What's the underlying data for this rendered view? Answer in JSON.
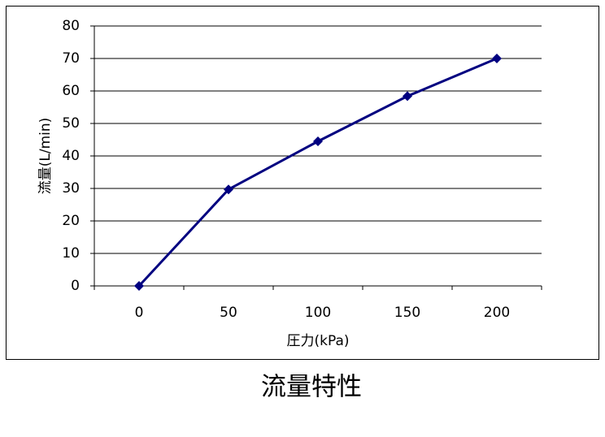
{
  "chart_data": {
    "type": "line",
    "title": "流量特性",
    "x_label": "圧力(kPa)",
    "y_label": "流量(L/min)",
    "categories": [
      "0",
      "50",
      "100",
      "150",
      "200"
    ],
    "series": [
      {
        "name": "流量",
        "color": "#000080",
        "values": [
          0,
          29.7,
          44.5,
          58.4,
          70
        ]
      }
    ],
    "ylim": [
      0,
      80
    ],
    "yticks": [
      0,
      10,
      20,
      30,
      40,
      50,
      60,
      70,
      80
    ],
    "grid": true
  }
}
